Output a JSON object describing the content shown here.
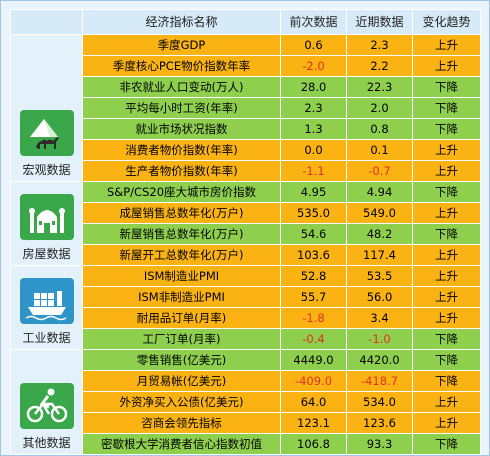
{
  "header": {
    "name": "经济指标名称",
    "prev": "前次数据",
    "recent": "近期数据",
    "trend": "变化趋势"
  },
  "categories": [
    {
      "label": "宏观数据",
      "icon": "pyramid-camel-icon",
      "icon_bg": "#3aa84a"
    },
    {
      "label": "房屋数据",
      "icon": "mosque-building-icon",
      "icon_bg": "#3aa84a"
    },
    {
      "label": "工业数据",
      "icon": "cargo-ship-icon",
      "icon_bg": "#2f95c9"
    },
    {
      "label": "其他数据",
      "icon": "cyclist-icon",
      "icon_bg": "#3aa84a"
    }
  ],
  "rows": [
    {
      "name": "季度GDP",
      "prev": "0.6",
      "recent": "2.3",
      "trend": "上升",
      "color": "orange",
      "prev_red": false,
      "recent_red": false
    },
    {
      "name": "季度核心PCE物价指数年率",
      "prev": "-2.0",
      "recent": "2.2",
      "trend": "上升",
      "color": "orange",
      "prev_red": true,
      "recent_red": false
    },
    {
      "name": "非农就业人口变动(万人)",
      "prev": "28.0",
      "recent": "22.3",
      "trend": "下降",
      "color": "green",
      "prev_red": false,
      "recent_red": false
    },
    {
      "name": "平均每小时工资(年率)",
      "prev": "2.3",
      "recent": "2.0",
      "trend": "下降",
      "color": "green",
      "prev_red": false,
      "recent_red": false
    },
    {
      "name": "就业市场状况指数",
      "prev": "1.3",
      "recent": "0.8",
      "trend": "下降",
      "color": "green",
      "prev_red": false,
      "recent_red": false
    },
    {
      "name": "消费者物价指数(年率)",
      "prev": "0.0",
      "recent": "0.1",
      "trend": "上升",
      "color": "orange",
      "prev_red": false,
      "recent_red": false
    },
    {
      "name": "生产者物价指数(年率)",
      "prev": "-1.1",
      "recent": "-0.7",
      "trend": "上升",
      "color": "orange",
      "prev_red": true,
      "recent_red": true
    },
    {
      "name": "S&P/CS20座大城市房价指数",
      "prev": "4.95",
      "recent": "4.94",
      "trend": "下降",
      "color": "green",
      "prev_red": false,
      "recent_red": false
    },
    {
      "name": "成屋销售总数年化(万户)",
      "prev": "535.0",
      "recent": "549.0",
      "trend": "上升",
      "color": "orange",
      "prev_red": false,
      "recent_red": false
    },
    {
      "name": "新屋销售总数年化(万户)",
      "prev": "54.6",
      "recent": "48.2",
      "trend": "下降",
      "color": "green",
      "prev_red": false,
      "recent_red": false
    },
    {
      "name": "新屋开工总数年化(万户)",
      "prev": "103.6",
      "recent": "117.4",
      "trend": "上升",
      "color": "orange",
      "prev_red": false,
      "recent_red": false
    },
    {
      "name": "ISM制造业PMI",
      "prev": "52.8",
      "recent": "53.5",
      "trend": "上升",
      "color": "orange",
      "prev_red": false,
      "recent_red": false
    },
    {
      "name": "ISM非制造业PMI",
      "prev": "55.7",
      "recent": "56.0",
      "trend": "上升",
      "color": "orange",
      "prev_red": false,
      "recent_red": false
    },
    {
      "name": "耐用品订单(月率)",
      "prev": "-1.8",
      "recent": "3.4",
      "trend": "上升",
      "color": "orange",
      "prev_red": true,
      "recent_red": false
    },
    {
      "name": "工厂订单(月率)",
      "prev": "-0.4",
      "recent": "-1.0",
      "trend": "下降",
      "color": "green",
      "prev_red": true,
      "recent_red": true
    },
    {
      "name": "零售销售(亿美元)",
      "prev": "4449.0",
      "recent": "4420.0",
      "trend": "下降",
      "color": "green",
      "prev_red": false,
      "recent_red": false
    },
    {
      "name": "月贸易帐(亿美元)",
      "prev": "-409.0",
      "recent": "-418.7",
      "trend": "下降",
      "color": "orange",
      "prev_red": true,
      "recent_red": true
    },
    {
      "name": "外资净买入公债(亿美元)",
      "prev": "64.0",
      "recent": "534.0",
      "trend": "上升",
      "color": "orange",
      "prev_red": false,
      "recent_red": false
    },
    {
      "name": "咨商会领先指标",
      "prev": "123.1",
      "recent": "123.6",
      "trend": "上升",
      "color": "orange",
      "prev_red": false,
      "recent_red": false
    },
    {
      "name": "密歇根大学消费者信心指数初值",
      "prev": "106.8",
      "recent": "93.3",
      "trend": "下降",
      "color": "green",
      "prev_red": false,
      "recent_red": false
    }
  ]
}
